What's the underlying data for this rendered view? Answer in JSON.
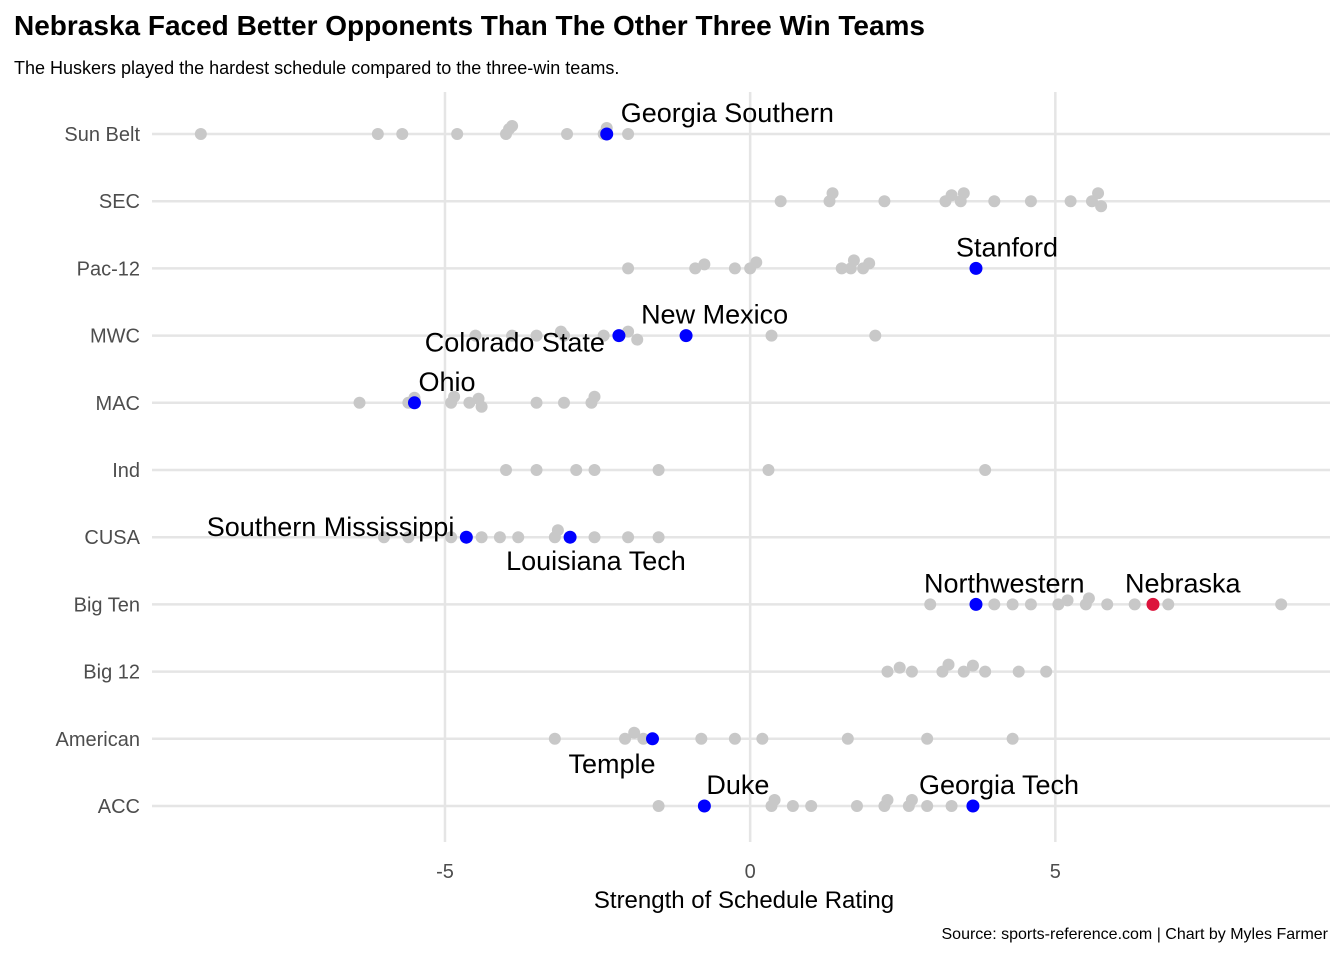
{
  "header": {
    "title": "Nebraska Faced Better Opponents Than The Other Three Win Teams",
    "subtitle": "The Huskers played the hardest schedule compared to the three-win teams."
  },
  "caption": "Source: sports-reference.com | Chart by Myles Farmer",
  "colors": {
    "background": "#ffffff",
    "grid": "#e5e5e5",
    "other_team": "#c8c8c8",
    "highlight_team": "#0000ff",
    "nebraska": "#dc143c"
  },
  "chart_data": {
    "type": "scatter",
    "xlabel": "Strength of Schedule Rating",
    "ylabel": "",
    "xlim": [
      -9.8,
      9.5
    ],
    "x_ticks": [
      {
        "value": -5,
        "label": "-5"
      },
      {
        "value": 0,
        "label": "0"
      },
      {
        "value": 5,
        "label": "5"
      }
    ],
    "grid": true,
    "legend": "none",
    "categories": [
      "Sun Belt",
      "SEC",
      "Pac-12",
      "MWC",
      "MAC",
      "Ind",
      "CUSA",
      "Big Ten",
      "Big 12",
      "American",
      "ACC"
    ],
    "points": [
      {
        "conf": "Sun Belt",
        "x": -9.0,
        "dy": 0
      },
      {
        "conf": "Sun Belt",
        "x": -6.1,
        "dy": 0
      },
      {
        "conf": "Sun Belt",
        "x": -5.7,
        "dy": 0
      },
      {
        "conf": "Sun Belt",
        "x": -4.8,
        "dy": 0
      },
      {
        "conf": "Sun Belt",
        "x": -4.0,
        "dy": 0
      },
      {
        "conf": "Sun Belt",
        "x": -3.95,
        "dy": -5
      },
      {
        "conf": "Sun Belt",
        "x": -3.9,
        "dy": -8
      },
      {
        "conf": "Sun Belt",
        "x": -3.0,
        "dy": 0
      },
      {
        "conf": "Sun Belt",
        "x": -2.4,
        "dy": 0
      },
      {
        "conf": "Sun Belt",
        "x": -2.35,
        "dy": -6
      },
      {
        "conf": "Sun Belt",
        "x": -2.0,
        "dy": 0
      },
      {
        "conf": "SEC",
        "x": 0.5,
        "dy": 0
      },
      {
        "conf": "SEC",
        "x": 1.3,
        "dy": 0
      },
      {
        "conf": "SEC",
        "x": 1.35,
        "dy": -8
      },
      {
        "conf": "SEC",
        "x": 2.2,
        "dy": 0
      },
      {
        "conf": "SEC",
        "x": 3.2,
        "dy": 0
      },
      {
        "conf": "SEC",
        "x": 3.3,
        "dy": -6
      },
      {
        "conf": "SEC",
        "x": 3.45,
        "dy": 0
      },
      {
        "conf": "SEC",
        "x": 3.5,
        "dy": -8
      },
      {
        "conf": "SEC",
        "x": 4.0,
        "dy": 0
      },
      {
        "conf": "SEC",
        "x": 4.6,
        "dy": 0
      },
      {
        "conf": "SEC",
        "x": 5.25,
        "dy": 0
      },
      {
        "conf": "SEC",
        "x": 5.6,
        "dy": 0
      },
      {
        "conf": "SEC",
        "x": 5.7,
        "dy": -8
      },
      {
        "conf": "SEC",
        "x": 5.75,
        "dy": 5
      },
      {
        "conf": "Pac-12",
        "x": -2.0,
        "dy": 0
      },
      {
        "conf": "Pac-12",
        "x": -0.9,
        "dy": 0
      },
      {
        "conf": "Pac-12",
        "x": -0.75,
        "dy": -4
      },
      {
        "conf": "Pac-12",
        "x": -0.25,
        "dy": 0
      },
      {
        "conf": "Pac-12",
        "x": 0.0,
        "dy": 0
      },
      {
        "conf": "Pac-12",
        "x": 0.1,
        "dy": -6
      },
      {
        "conf": "Pac-12",
        "x": 1.5,
        "dy": 0
      },
      {
        "conf": "Pac-12",
        "x": 1.65,
        "dy": 0
      },
      {
        "conf": "Pac-12",
        "x": 1.7,
        "dy": -8
      },
      {
        "conf": "Pac-12",
        "x": 1.85,
        "dy": 0
      },
      {
        "conf": "Pac-12",
        "x": 1.95,
        "dy": -5
      },
      {
        "conf": "MWC",
        "x": -4.5,
        "dy": 0
      },
      {
        "conf": "MWC",
        "x": -3.9,
        "dy": 0
      },
      {
        "conf": "MWC",
        "x": -3.5,
        "dy": 0
      },
      {
        "conf": "MWC",
        "x": -3.1,
        "dy": -4
      },
      {
        "conf": "MWC",
        "x": -3.05,
        "dy": 0
      },
      {
        "conf": "MWC",
        "x": -2.4,
        "dy": 0
      },
      {
        "conf": "MWC",
        "x": -2.0,
        "dy": -4
      },
      {
        "conf": "MWC",
        "x": -1.85,
        "dy": 4
      },
      {
        "conf": "MWC",
        "x": 0.35,
        "dy": 0
      },
      {
        "conf": "MWC",
        "x": 2.05,
        "dy": 0
      },
      {
        "conf": "MAC",
        "x": -6.4,
        "dy": 0
      },
      {
        "conf": "MAC",
        "x": -5.6,
        "dy": 0
      },
      {
        "conf": "MAC",
        "x": -5.5,
        "dy": -5
      },
      {
        "conf": "MAC",
        "x": -4.9,
        "dy": 0
      },
      {
        "conf": "MAC",
        "x": -4.85,
        "dy": -6
      },
      {
        "conf": "MAC",
        "x": -4.6,
        "dy": 0
      },
      {
        "conf": "MAC",
        "x": -4.45,
        "dy": -4
      },
      {
        "conf": "MAC",
        "x": -4.4,
        "dy": 4
      },
      {
        "conf": "MAC",
        "x": -3.5,
        "dy": 0
      },
      {
        "conf": "MAC",
        "x": -3.05,
        "dy": 0
      },
      {
        "conf": "MAC",
        "x": -2.6,
        "dy": 0
      },
      {
        "conf": "MAC",
        "x": -2.55,
        "dy": -6
      },
      {
        "conf": "Ind",
        "x": -4.0,
        "dy": 0
      },
      {
        "conf": "Ind",
        "x": -3.5,
        "dy": 0
      },
      {
        "conf": "Ind",
        "x": -2.85,
        "dy": 0
      },
      {
        "conf": "Ind",
        "x": -2.55,
        "dy": 0
      },
      {
        "conf": "Ind",
        "x": -1.5,
        "dy": 0
      },
      {
        "conf": "Ind",
        "x": 0.3,
        "dy": 0
      },
      {
        "conf": "Ind",
        "x": 3.85,
        "dy": 0
      },
      {
        "conf": "CUSA",
        "x": -6.0,
        "dy": 0
      },
      {
        "conf": "CUSA",
        "x": -5.6,
        "dy": 0
      },
      {
        "conf": "CUSA",
        "x": -4.9,
        "dy": 0
      },
      {
        "conf": "CUSA",
        "x": -4.4,
        "dy": 0
      },
      {
        "conf": "CUSA",
        "x": -4.1,
        "dy": 0
      },
      {
        "conf": "CUSA",
        "x": -3.8,
        "dy": 0
      },
      {
        "conf": "CUSA",
        "x": -3.2,
        "dy": 0
      },
      {
        "conf": "CUSA",
        "x": -3.15,
        "dy": -7
      },
      {
        "conf": "CUSA",
        "x": -2.55,
        "dy": 0
      },
      {
        "conf": "CUSA",
        "x": -2.0,
        "dy": 0
      },
      {
        "conf": "CUSA",
        "x": -1.5,
        "dy": 0
      },
      {
        "conf": "Big Ten",
        "x": 2.95,
        "dy": 0
      },
      {
        "conf": "Big Ten",
        "x": 4.0,
        "dy": 0
      },
      {
        "conf": "Big Ten",
        "x": 4.3,
        "dy": 0
      },
      {
        "conf": "Big Ten",
        "x": 4.6,
        "dy": 0
      },
      {
        "conf": "Big Ten",
        "x": 5.05,
        "dy": 0
      },
      {
        "conf": "Big Ten",
        "x": 5.2,
        "dy": -4
      },
      {
        "conf": "Big Ten",
        "x": 5.5,
        "dy": 0
      },
      {
        "conf": "Big Ten",
        "x": 5.55,
        "dy": -6
      },
      {
        "conf": "Big Ten",
        "x": 5.85,
        "dy": 0
      },
      {
        "conf": "Big Ten",
        "x": 6.3,
        "dy": 0
      },
      {
        "conf": "Big Ten",
        "x": 6.85,
        "dy": 0
      },
      {
        "conf": "Big Ten",
        "x": 8.7,
        "dy": 0
      },
      {
        "conf": "Big 12",
        "x": 2.25,
        "dy": 0
      },
      {
        "conf": "Big 12",
        "x": 2.45,
        "dy": -4
      },
      {
        "conf": "Big 12",
        "x": 2.65,
        "dy": 0
      },
      {
        "conf": "Big 12",
        "x": 3.15,
        "dy": 0
      },
      {
        "conf": "Big 12",
        "x": 3.25,
        "dy": -7
      },
      {
        "conf": "Big 12",
        "x": 3.5,
        "dy": 0
      },
      {
        "conf": "Big 12",
        "x": 3.65,
        "dy": -6
      },
      {
        "conf": "Big 12",
        "x": 3.85,
        "dy": 0
      },
      {
        "conf": "Big 12",
        "x": 4.4,
        "dy": 0
      },
      {
        "conf": "Big 12",
        "x": 4.85,
        "dy": 0
      },
      {
        "conf": "American",
        "x": -3.2,
        "dy": 0
      },
      {
        "conf": "American",
        "x": -2.05,
        "dy": 0
      },
      {
        "conf": "American",
        "x": -1.9,
        "dy": -6
      },
      {
        "conf": "American",
        "x": -1.75,
        "dy": 0
      },
      {
        "conf": "American",
        "x": -0.8,
        "dy": 0
      },
      {
        "conf": "American",
        "x": -0.25,
        "dy": 0
      },
      {
        "conf": "American",
        "x": 0.2,
        "dy": 0
      },
      {
        "conf": "American",
        "x": 1.6,
        "dy": 0
      },
      {
        "conf": "American",
        "x": 2.9,
        "dy": 0
      },
      {
        "conf": "American",
        "x": 4.3,
        "dy": 0
      },
      {
        "conf": "ACC",
        "x": -1.5,
        "dy": 0
      },
      {
        "conf": "ACC",
        "x": 0.35,
        "dy": 0
      },
      {
        "conf": "ACC",
        "x": 0.4,
        "dy": -6
      },
      {
        "conf": "ACC",
        "x": 0.7,
        "dy": 0
      },
      {
        "conf": "ACC",
        "x": 1.0,
        "dy": 0
      },
      {
        "conf": "ACC",
        "x": 1.75,
        "dy": 0
      },
      {
        "conf": "ACC",
        "x": 2.2,
        "dy": 0
      },
      {
        "conf": "ACC",
        "x": 2.25,
        "dy": -6
      },
      {
        "conf": "ACC",
        "x": 2.6,
        "dy": 0
      },
      {
        "conf": "ACC",
        "x": 2.65,
        "dy": -6
      },
      {
        "conf": "ACC",
        "x": 2.9,
        "dy": 0
      },
      {
        "conf": "ACC",
        "x": 3.3,
        "dy": 0
      }
    ],
    "highlighted": [
      {
        "name": "Georgia Southern",
        "conf": "Sun Belt",
        "x": -2.35,
        "color": "#0000ff",
        "label_dx": 14,
        "label_dy": -12,
        "anchor": "start"
      },
      {
        "name": "Stanford",
        "conf": "Pac-12",
        "x": 3.7,
        "color": "#0000ff",
        "label_dx": -20,
        "label_dy": -12,
        "anchor": "start"
      },
      {
        "name": "New Mexico",
        "conf": "MWC",
        "x": -1.05,
        "color": "#0000ff",
        "label_dx": -45,
        "label_dy": -12,
        "anchor": "start"
      },
      {
        "name": "Colorado State",
        "conf": "MWC",
        "x": -2.15,
        "color": "#0000ff",
        "label_dx": -14,
        "label_dy": 16,
        "anchor": "end"
      },
      {
        "name": "Ohio",
        "conf": "MAC",
        "x": -5.5,
        "color": "#0000ff",
        "label_dx": 4,
        "label_dy": -12,
        "anchor": "start"
      },
      {
        "name": "Southern Mississippi",
        "conf": "CUSA",
        "x": -4.65,
        "color": "#0000ff",
        "label_dx": -12,
        "label_dy": -1,
        "anchor": "end"
      },
      {
        "name": "Louisiana Tech",
        "conf": "CUSA",
        "x": -2.95,
        "color": "#0000ff",
        "label_dx": -64,
        "label_dy": 33,
        "anchor": "start"
      },
      {
        "name": "Northwestern",
        "conf": "Big Ten",
        "x": 3.7,
        "color": "#0000ff",
        "label_dx": -52,
        "label_dy": -12,
        "anchor": "start"
      },
      {
        "name": "Nebraska",
        "conf": "Big Ten",
        "x": 6.6,
        "color": "#dc143c",
        "label_dx": -28,
        "label_dy": -12,
        "anchor": "start"
      },
      {
        "name": "Temple",
        "conf": "American",
        "x": -1.6,
        "color": "#0000ff",
        "label_dx": -84,
        "label_dy": 34,
        "anchor": "start"
      },
      {
        "name": "Duke",
        "conf": "ACC",
        "x": -0.75,
        "color": "#0000ff",
        "label_dx": 2,
        "label_dy": -12,
        "anchor": "start"
      },
      {
        "name": "Georgia Tech",
        "conf": "ACC",
        "x": 3.65,
        "color": "#0000ff",
        "label_dx": -54,
        "label_dy": -12,
        "anchor": "start"
      }
    ]
  }
}
